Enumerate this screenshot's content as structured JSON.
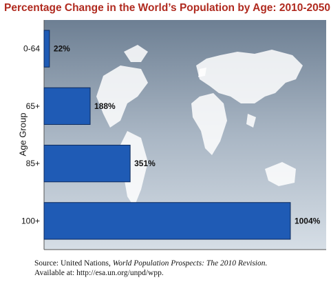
{
  "title": "Percentage Change in the World’s Population by Age: 2010-2050",
  "source": {
    "prefix": "Source: United Nations,",
    "publication": "World Population Prospects: The 2010 Revision.",
    "available": "Available at: http://esa.un.org/unpd/wpp."
  },
  "colors": {
    "bar": "#1f5bb5",
    "title": "#b02a1f"
  },
  "chart_data": {
    "type": "bar",
    "orientation": "horizontal",
    "title": "Percentage Change in the World’s Population by Age: 2010-2050",
    "ylabel": "Age Group",
    "xlabel": "",
    "categories": [
      "0-64",
      "65+",
      "85+",
      "100+"
    ],
    "values": [
      22,
      188,
      351,
      1004
    ],
    "labels": [
      "22%",
      "188%",
      "351%",
      "1004%"
    ],
    "xlim": [
      0,
      1150
    ],
    "grid": false,
    "legend": "none"
  }
}
